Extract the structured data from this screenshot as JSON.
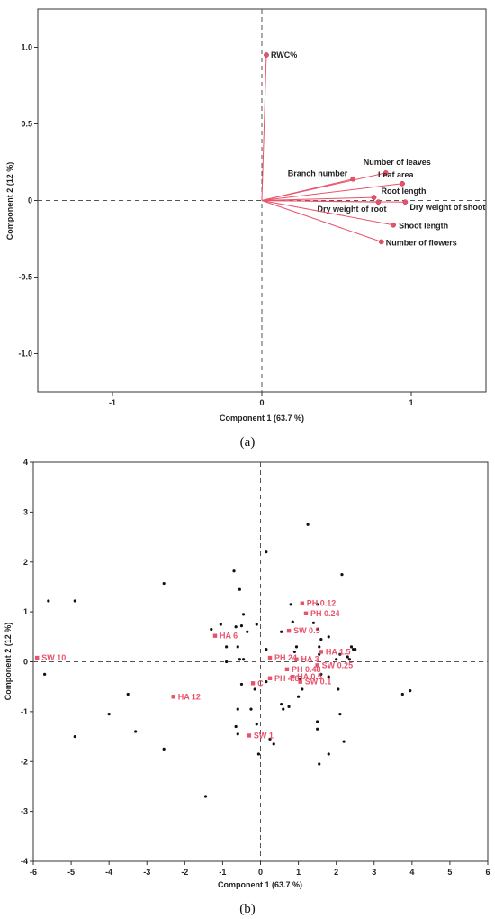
{
  "colors": {
    "accent": "#e8536b",
    "axis": "#333333",
    "dashed": "#555555",
    "points": "#111111"
  },
  "chart_data": [
    {
      "type": "scatter",
      "subtype": "loading-plot",
      "panel_label": "(a)",
      "xlabel": "Component 1 (63.7 %)",
      "ylabel": "Component 2 (12 %)",
      "xlim": [
        -1.5,
        1.5
      ],
      "ylim": [
        -1.25,
        1.25
      ],
      "xticks": [
        -1,
        0,
        1
      ],
      "yticks": [
        1.0,
        0.5,
        0,
        -0.5,
        -1.0
      ],
      "xtick_labels": [
        "-1",
        "0",
        "1"
      ],
      "ytick_labels": [
        "1.0",
        "0.5",
        "0",
        "-0.5",
        "-1.0"
      ],
      "grid": false,
      "vectors": [
        {
          "name": "RWC%",
          "x": 0.03,
          "y": 0.95
        },
        {
          "name": "Number of leaves",
          "x": 0.83,
          "y": 0.18
        },
        {
          "name": "Branch number",
          "x": 0.61,
          "y": 0.14
        },
        {
          "name": "Leaf area",
          "x": 0.94,
          "y": 0.11
        },
        {
          "name": "Root length",
          "x": 0.75,
          "y": 0.02
        },
        {
          "name": "Dry weight of root",
          "x": 0.78,
          "y": -0.01
        },
        {
          "name": "Dry weight of shoot",
          "x": 0.96,
          "y": -0.01
        },
        {
          "name": "Shoot length",
          "x": 0.88,
          "y": -0.16
        },
        {
          "name": "Number of flowers",
          "x": 0.8,
          "y": -0.27
        }
      ]
    },
    {
      "type": "scatter",
      "subtype": "score-plot",
      "panel_label": "(b)",
      "xlabel": "Component 1 (63.7 %)",
      "ylabel": "Component 2 (12 %)",
      "xlim": [
        -6,
        6
      ],
      "ylim": [
        -4,
        4
      ],
      "xticks": [
        -6,
        -5,
        -4,
        -3,
        -2,
        -1,
        0,
        1,
        2,
        3,
        4,
        5,
        6
      ],
      "yticks": [
        4,
        3,
        2,
        1,
        0,
        -1,
        -2,
        -3,
        -4
      ],
      "xtick_labels": [
        "-6",
        "-5",
        "-4",
        "-3",
        "-2",
        "-1",
        "0",
        "1",
        "2",
        "3",
        "4",
        "5",
        "6"
      ],
      "ytick_labels": [
        "4",
        "3",
        "2",
        "1",
        "0",
        "-1",
        "-2",
        "-3",
        "-4"
      ],
      "grid": false,
      "treatments": [
        {
          "name": "SW 10",
          "x": -5.9,
          "y": 0.08
        },
        {
          "name": "HA 6",
          "x": -1.2,
          "y": 0.52
        },
        {
          "name": "HA 12",
          "x": -2.3,
          "y": -0.7
        },
        {
          "name": "PH 24",
          "x": 0.25,
          "y": 0.08
        },
        {
          "name": "PH 0.12",
          "x": 1.1,
          "y": 1.17
        },
        {
          "name": "PH 0.24",
          "x": 1.2,
          "y": 0.97
        },
        {
          "name": "SW 0.5",
          "x": 0.75,
          "y": 0.62
        },
        {
          "name": "HA 3",
          "x": 0.95,
          "y": 0.05
        },
        {
          "name": "HA 1.5",
          "x": 1.6,
          "y": 0.2
        },
        {
          "name": "SW 0.25",
          "x": 1.5,
          "y": -0.07
        },
        {
          "name": "PH 0.48",
          "x": 0.7,
          "y": -0.15
        },
        {
          "name": "HA 0.5",
          "x": 0.85,
          "y": -0.3
        },
        {
          "name": "PH 4.8",
          "x": 0.25,
          "y": -0.33
        },
        {
          "name": "C",
          "x": -0.2,
          "y": -0.43
        },
        {
          "name": "SW 0.1",
          "x": 1.05,
          "y": -0.4
        },
        {
          "name": "SW 1",
          "x": -0.3,
          "y": -1.48
        }
      ],
      "observations": [
        [
          -5.6,
          1.22
        ],
        [
          -4.9,
          1.22
        ],
        [
          -5.7,
          -0.25
        ],
        [
          -4.9,
          -1.5
        ],
        [
          -4.0,
          -1.05
        ],
        [
          -3.5,
          -0.65
        ],
        [
          -3.3,
          -1.4
        ],
        [
          -2.55,
          1.57
        ],
        [
          -2.55,
          -1.75
        ],
        [
          -1.45,
          -2.7
        ],
        [
          -1.3,
          0.65
        ],
        [
          -1.05,
          0.75
        ],
        [
          -0.7,
          1.82
        ],
        [
          -0.55,
          1.45
        ],
        [
          -0.65,
          0.7
        ],
        [
          -0.45,
          0.95
        ],
        [
          -0.5,
          0.72
        ],
        [
          -0.35,
          0.6
        ],
        [
          -0.9,
          0.3
        ],
        [
          -0.6,
          0.3
        ],
        [
          -0.55,
          0.05
        ],
        [
          -0.45,
          0.05
        ],
        [
          -0.9,
          0.0
        ],
        [
          -0.5,
          -0.45
        ],
        [
          -0.6,
          -0.95
        ],
        [
          -0.15,
          -0.55
        ],
        [
          -0.65,
          -1.3
        ],
        [
          -0.6,
          -1.45
        ],
        [
          -0.25,
          -0.95
        ],
        [
          -0.1,
          -1.25
        ],
        [
          -0.05,
          -1.85
        ],
        [
          -0.1,
          0.75
        ],
        [
          0.15,
          2.2
        ],
        [
          0.15,
          0.25
        ],
        [
          0.15,
          -0.4
        ],
        [
          0.25,
          -1.55
        ],
        [
          0.35,
          -1.65
        ],
        [
          0.55,
          0.6
        ],
        [
          0.55,
          -0.85
        ],
        [
          0.6,
          -0.95
        ],
        [
          0.75,
          -0.9
        ],
        [
          0.8,
          1.15
        ],
        [
          0.85,
          0.8
        ],
        [
          0.9,
          0.2
        ],
        [
          0.95,
          0.3
        ],
        [
          1.0,
          -0.7
        ],
        [
          1.05,
          -0.35
        ],
        [
          1.1,
          -0.55
        ],
        [
          1.25,
          2.75
        ],
        [
          1.4,
          0.78
        ],
        [
          1.5,
          1.15
        ],
        [
          1.5,
          0.65
        ],
        [
          1.55,
          0.3
        ],
        [
          1.55,
          0.15
        ],
        [
          1.6,
          -0.25
        ],
        [
          1.5,
          -1.2
        ],
        [
          1.5,
          -1.35
        ],
        [
          1.55,
          -2.05
        ],
        [
          1.6,
          0.45
        ],
        [
          1.8,
          0.5
        ],
        [
          1.8,
          -0.3
        ],
        [
          1.8,
          -1.85
        ],
        [
          2.0,
          0.05
        ],
        [
          2.05,
          -0.55
        ],
        [
          2.1,
          0.15
        ],
        [
          2.1,
          -1.05
        ],
        [
          2.15,
          1.75
        ],
        [
          2.2,
          -1.6
        ],
        [
          2.3,
          0.1
        ],
        [
          2.4,
          0.3
        ],
        [
          2.45,
          0.25
        ],
        [
          2.5,
          0.25
        ],
        [
          3.75,
          -0.65
        ],
        [
          3.95,
          -0.58
        ],
        [
          2.35,
          0.05
        ]
      ]
    }
  ]
}
